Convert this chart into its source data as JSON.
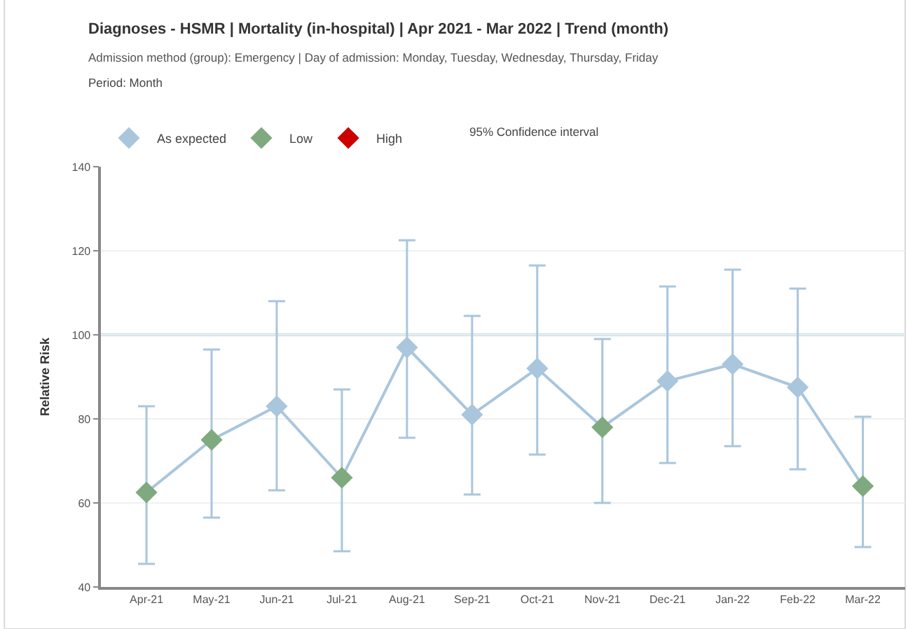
{
  "chart_data": {
    "type": "line",
    "title": "Diagnoses - HSMR | Mortality (in-hospital) | Apr 2021 - Mar 2022 | Trend (month)",
    "subtitle": "Admission method (group): Emergency | Day of admission: Monday, Tuesday, Wednesday, Thursday, Friday",
    "annotations": [
      "Period: Month",
      "95% Confidence interval"
    ],
    "ylabel": "Relative Risk",
    "categories": [
      "Apr-21",
      "May-21",
      "Jun-21",
      "Jul-21",
      "Aug-21",
      "Sep-21",
      "Oct-21",
      "Nov-21",
      "Dec-21",
      "Jan-22",
      "Feb-22",
      "Mar-22"
    ],
    "series": [
      {
        "color": "#a9c6dd",
        "marker": "none",
        "values": [
          62.5,
          75,
          83,
          66,
          97,
          81,
          92,
          78,
          89,
          93,
          87.5,
          64
        ],
        "errors": [
          [
            45.5,
            83
          ],
          [
            56.5,
            96.5
          ],
          [
            63,
            108
          ],
          [
            48.5,
            87
          ],
          [
            75.5,
            122.5
          ],
          [
            62,
            104.5
          ],
          [
            71.5,
            116.5
          ],
          [
            60,
            99
          ],
          [
            69.5,
            111.5
          ],
          [
            73.5,
            115.5
          ],
          [
            68,
            111
          ],
          [
            49.5,
            80.5
          ]
        ]
      },
      {
        "type": "scatter",
        "name": "As expected",
        "color": "#a9c6dd",
        "marker": "diamond",
        "values": [
          null,
          null,
          83,
          null,
          97,
          81,
          92,
          null,
          89,
          93,
          87.5,
          null
        ]
      },
      {
        "type": "scatter",
        "name": "Low",
        "color": "#7faa7f",
        "marker": "diamond",
        "values": [
          62.5,
          75,
          null,
          66,
          null,
          null,
          null,
          78,
          null,
          null,
          null,
          64
        ]
      },
      {
        "type": "scatter",
        "name": "High",
        "color": "#cc0000",
        "marker": "diamond",
        "values": [
          null,
          null,
          null,
          null,
          null,
          null,
          null,
          null,
          null,
          null,
          null,
          null
        ]
      }
    ],
    "ylim": [
      40,
      140
    ],
    "yticks": [
      40,
      60,
      80,
      100,
      120,
      140
    ],
    "ref_lines": [
      {
        "axis": "y",
        "value": 100,
        "color": "#7fb8c8"
      }
    ],
    "grid": "y",
    "legend": "top left"
  }
}
